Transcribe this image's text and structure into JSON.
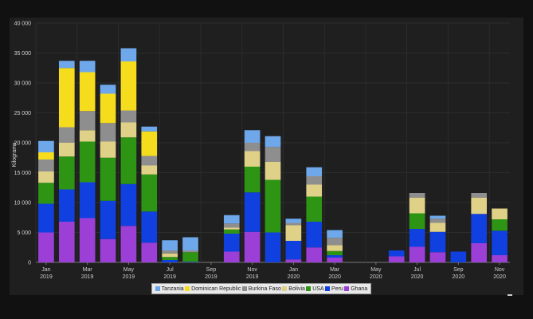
{
  "chart_data": {
    "type": "bar",
    "stacked": true,
    "ylabel": "Kilograms",
    "ylim": [
      0,
      40000
    ],
    "yticks": [
      0,
      5000,
      10000,
      15000,
      20000,
      25000,
      30000,
      35000,
      40000
    ],
    "ytick_labels": [
      "0",
      "5 000",
      "10 000",
      "15 000",
      "20 000",
      "25 000",
      "30 000",
      "35 000",
      "40 000"
    ],
    "categories": [
      "2019-01",
      "2019-02",
      "2019-03",
      "2019-04",
      "2019-05",
      "2019-06",
      "2019-07",
      "2019-08",
      "2019-09",
      "2019-10",
      "2019-11",
      "2019-12",
      "2020-01",
      "2020-02",
      "2020-03",
      "2020-04",
      "2020-05",
      "2020-06",
      "2020-07",
      "2020-08",
      "2020-09",
      "2020-10",
      "2020-11"
    ],
    "xtick_labels": [
      {
        "month": "Jan",
        "year": "2019"
      },
      {
        "month": "Mar",
        "year": "2019"
      },
      {
        "month": "May",
        "year": "2019"
      },
      {
        "month": "Jul",
        "year": "2019"
      },
      {
        "month": "Sep",
        "year": "2019"
      },
      {
        "month": "Nov",
        "year": "2019"
      },
      {
        "month": "Jan",
        "year": "2020"
      },
      {
        "month": "Mar",
        "year": "2020"
      },
      {
        "month": "May",
        "year": "2020"
      },
      {
        "month": "Jul",
        "year": "2020"
      },
      {
        "month": "Sep",
        "year": "2020"
      },
      {
        "month": "Nov",
        "year": "2020"
      }
    ],
    "series": [
      {
        "name": "Ghana",
        "color": "#9c3fd6",
        "values": [
          5000,
          6800,
          7400,
          3900,
          6100,
          3300,
          0,
          0,
          0,
          1800,
          5100,
          0,
          500,
          2500,
          800,
          0,
          0,
          1000,
          2600,
          1700,
          0,
          3200,
          1200
        ]
      },
      {
        "name": "Peru",
        "color": "#1040e0",
        "values": [
          4800,
          5400,
          6000,
          6400,
          7000,
          5200,
          400,
          100,
          0,
          3000,
          6600,
          5000,
          3100,
          4300,
          400,
          0,
          0,
          1000,
          3000,
          3400,
          1800,
          4900,
          4100
        ]
      },
      {
        "name": "USA",
        "color": "#2e9414",
        "values": [
          3500,
          5500,
          6800,
          7200,
          7800,
          6200,
          500,
          1600,
          0,
          700,
          4300,
          8800,
          0,
          4200,
          700,
          0,
          0,
          0,
          2600,
          0,
          0,
          0,
          1900
        ]
      },
      {
        "name": "Bolivia",
        "color": "#e0d188",
        "values": [
          1900,
          2300,
          1900,
          2700,
          2500,
          1500,
          600,
          0,
          0,
          300,
          2600,
          3000,
          2600,
          2000,
          1000,
          0,
          0,
          0,
          2600,
          1500,
          0,
          2700,
          1800
        ]
      },
      {
        "name": "Burkina Faso",
        "color": "#8e8e8e",
        "values": [
          2000,
          2600,
          3200,
          3100,
          2000,
          1600,
          500,
          300,
          0,
          700,
          1400,
          2500,
          400,
          1400,
          1200,
          0,
          0,
          0,
          800,
          700,
          0,
          800,
          0
        ]
      },
      {
        "name": "Dominican Republic",
        "color": "#f5dd1e",
        "values": [
          1200,
          9900,
          6500,
          4900,
          8200,
          4100,
          0,
          0,
          0,
          0,
          0,
          0,
          0,
          0,
          0,
          0,
          0,
          0,
          0,
          0,
          0,
          0,
          0
        ]
      },
      {
        "name": "Tanzania",
        "color": "#6ea8ea",
        "values": [
          1900,
          1200,
          1900,
          1500,
          2200,
          800,
          1700,
          2200,
          0,
          1400,
          2100,
          1800,
          700,
          1500,
          1300,
          0,
          0,
          0,
          0,
          500,
          0,
          0,
          0
        ]
      }
    ],
    "legend_order": [
      "Tanzania",
      "Dominican Republic",
      "Burkina Faso",
      "Bolivia",
      "USA",
      "Peru",
      "Ghana"
    ],
    "legend_position": "bottom-center",
    "grid": true
  }
}
